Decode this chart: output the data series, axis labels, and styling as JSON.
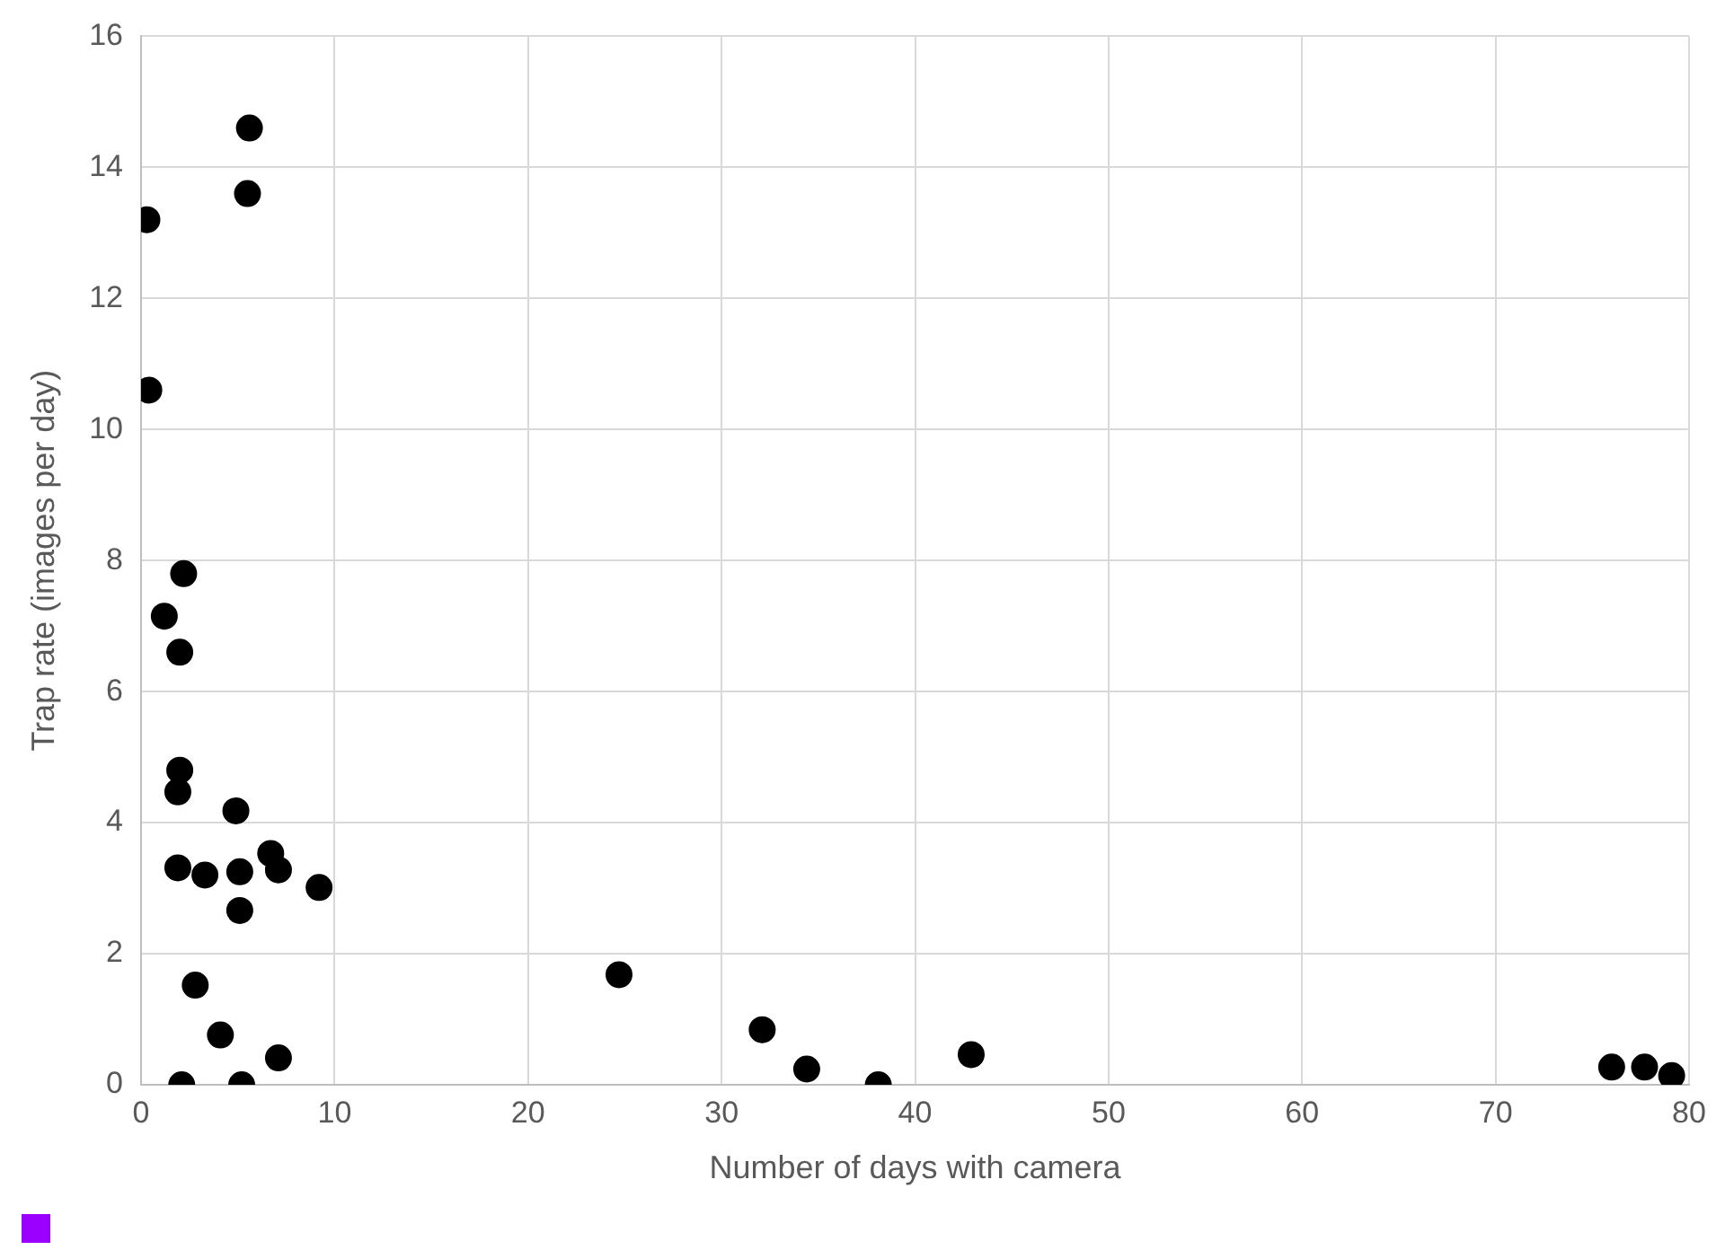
{
  "chart_data": {
    "type": "scatter",
    "xlabel": "Number of days with camera",
    "ylabel": "Trap rate (images per day)",
    "x": [
      5.6,
      5.5,
      0.3,
      0.4,
      2.2,
      1.2,
      2.0,
      2.0,
      1.9,
      4.9,
      1.9,
      3.3,
      5.1,
      6.7,
      7.1,
      9.2,
      5.1,
      2.8,
      4.1,
      7.1,
      2.1,
      5.2,
      24.7,
      32.1,
      34.4,
      38.1,
      42.9,
      76.0,
      77.7,
      79.1
    ],
    "values": [
      14.6,
      13.6,
      13.2,
      10.6,
      7.8,
      7.15,
      6.6,
      4.8,
      4.47,
      4.18,
      3.31,
      3.2,
      3.25,
      3.53,
      3.28,
      3.01,
      2.66,
      1.52,
      0.76,
      0.41,
      0,
      0,
      1.68,
      0.84,
      0.24,
      0,
      0.46,
      0.27,
      0.27,
      0.14
    ],
    "color": "#000000",
    "marker": "circle",
    "xlim": [
      0,
      80
    ],
    "xticks": [
      0,
      10,
      20,
      30,
      40,
      50,
      60,
      70,
      80
    ],
    "ylim": [
      0,
      16
    ],
    "yticks": [
      0,
      2,
      4,
      6,
      8,
      10,
      12,
      14,
      16
    ],
    "grid": true,
    "legend": false
  }
}
